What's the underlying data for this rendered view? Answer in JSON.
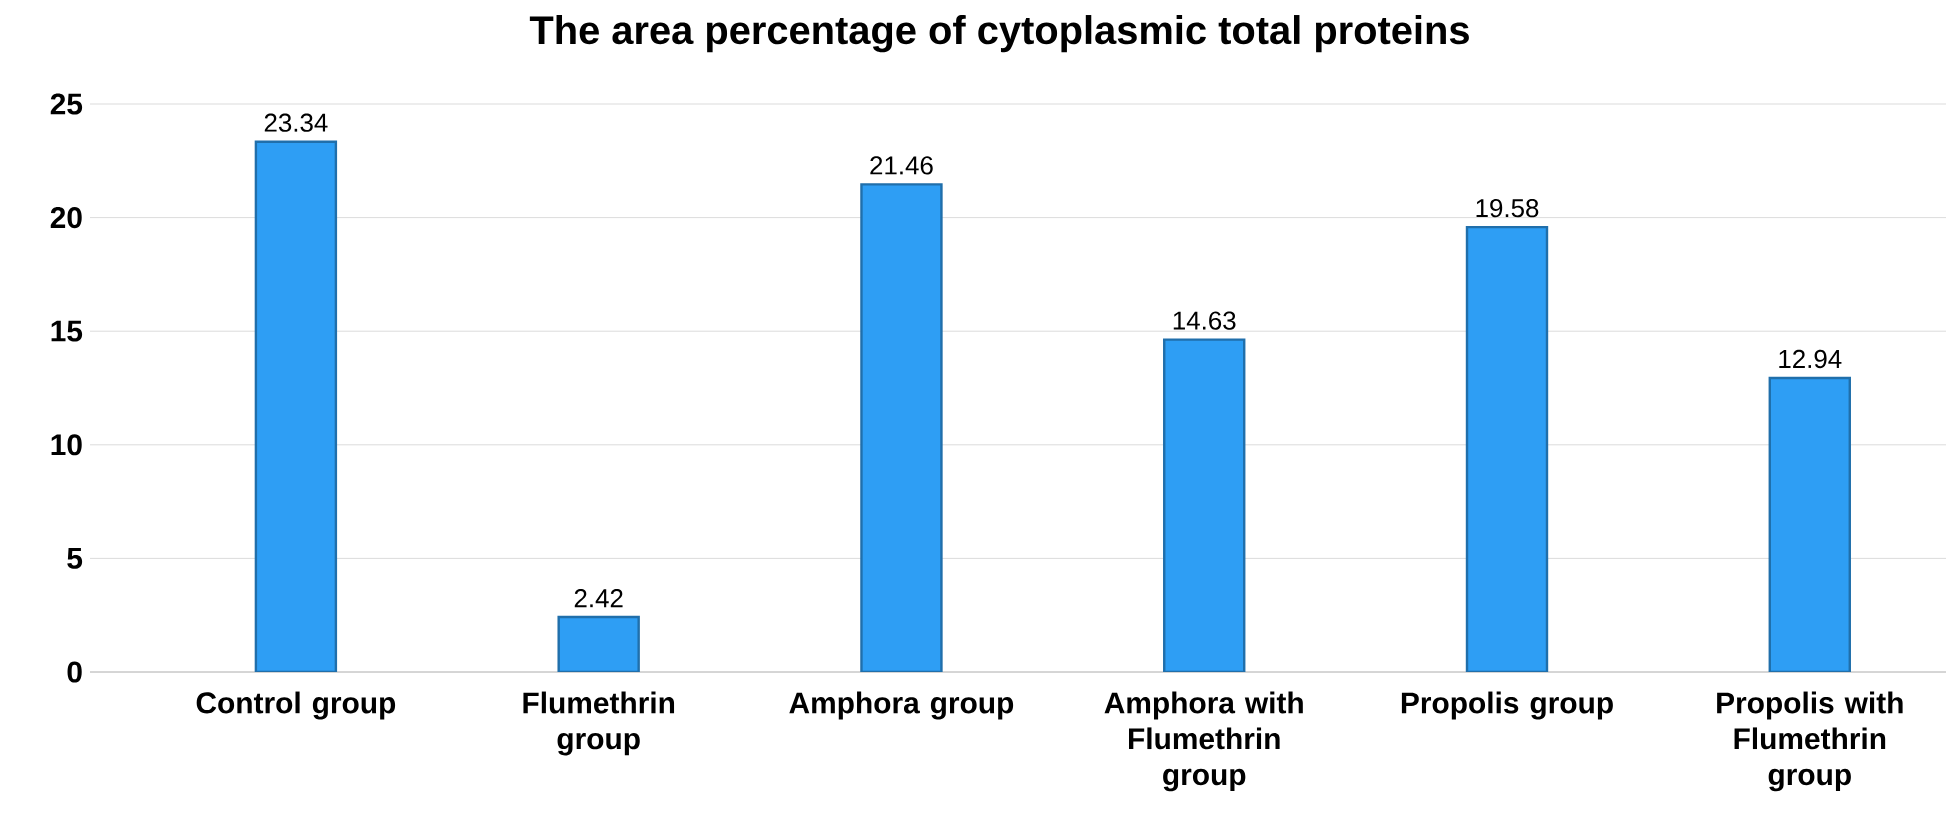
{
  "chart_data": {
    "type": "bar",
    "title": "The area percentage of cytoplasmic total proteins",
    "categories": [
      "Control group",
      "Flumethrin group",
      "Amphora group",
      "Amphora with Flumethrin group",
      "Propolis group",
      "Propolis with Flumethrin group"
    ],
    "values": [
      23.34,
      2.42,
      21.46,
      14.63,
      19.58,
      12.94
    ],
    "color": "#2e9ef4",
    "ylim": [
      0,
      25
    ],
    "yticks": [
      0,
      5,
      10,
      15,
      20,
      25
    ],
    "grid": "y",
    "data_labels": true
  }
}
